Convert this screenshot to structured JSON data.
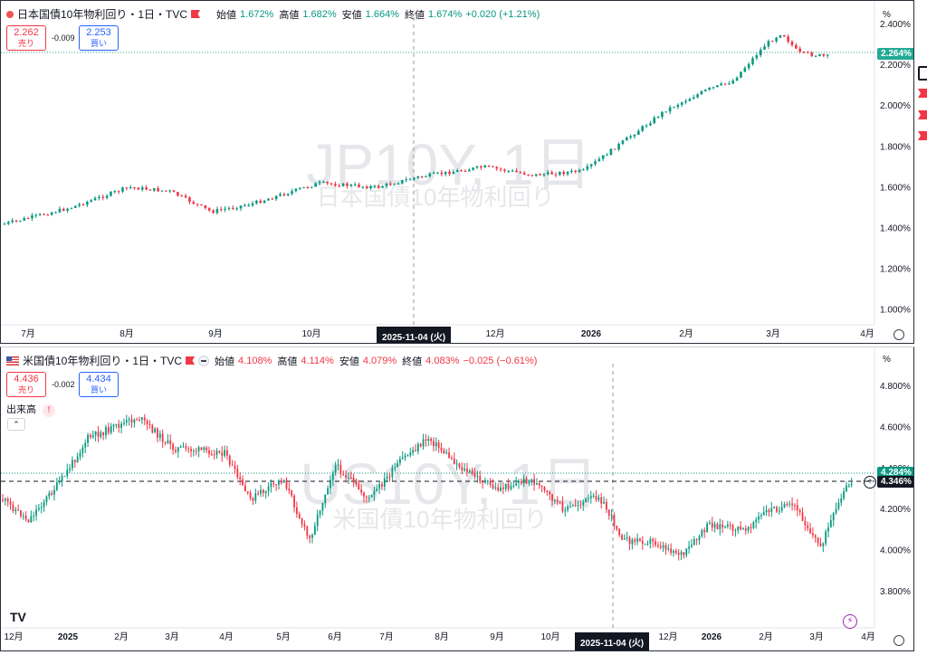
{
  "top": {
    "title": "日本国債10年物利回り・1日・TVC",
    "ohlc": {
      "open_label": "始値",
      "open": "1.672%",
      "high_label": "高値",
      "high": "1.682%",
      "low_label": "安値",
      "low": "1.664%",
      "close_label": "終値",
      "close": "1.674%",
      "change": "+0.020 (+1.21%)",
      "direction": "up"
    },
    "sell_price": "2.262",
    "sell_label": "売り",
    "spread": "-0.009",
    "buy_price": "2.253",
    "buy_label": "買い",
    "watermark_main": "JP10Y, 1日",
    "watermark_sub": "日本国債10年物利回り",
    "percent_label": "%",
    "price_axis": [
      "2.400%",
      "2.200%",
      "2.000%",
      "1.800%",
      "1.600%",
      "1.400%",
      "1.200%",
      "1.000%"
    ],
    "last_price": "2.264%",
    "time_axis": [
      "7月",
      "8月",
      "9月",
      "10月",
      "12月",
      "2026",
      "2月",
      "3月",
      "4月"
    ],
    "crosshair_date": "2025-11-04 (火)",
    "colors": {
      "up": "#089981",
      "down": "#f23645",
      "last": "#22ab94"
    }
  },
  "bottom": {
    "title": "米国債10年物利回り・1日・TVC",
    "ohlc": {
      "open_label": "始値",
      "open": "4.108%",
      "high_label": "高値",
      "high": "4.114%",
      "low_label": "安値",
      "low": "4.079%",
      "close_label": "終値",
      "close": "4.083%",
      "change": "−0.025 (−0.61%)",
      "direction": "down"
    },
    "sell_price": "4.436",
    "sell_label": "売り",
    "spread": "-0.002",
    "buy_price": "4.434",
    "buy_label": "買い",
    "volume_label": "出来高",
    "watermark_main": "US10Y, 1日",
    "watermark_sub": "米国債10年物利回り",
    "percent_label": "%",
    "price_axis": [
      "4.800%",
      "4.600%",
      "4.400%",
      "4.200%",
      "4.000%",
      "3.800%"
    ],
    "last_price": "4.284%",
    "crosshair_price": "4.346%",
    "time_axis": [
      "12月",
      "2025",
      "2月",
      "3月",
      "4月",
      "5月",
      "6月",
      "7月",
      "8月",
      "9月",
      "10月",
      "12月",
      "2026",
      "2月",
      "3月",
      "4月"
    ],
    "crosshair_date": "2025-11-04 (火)",
    "logo": "TV"
  }
}
